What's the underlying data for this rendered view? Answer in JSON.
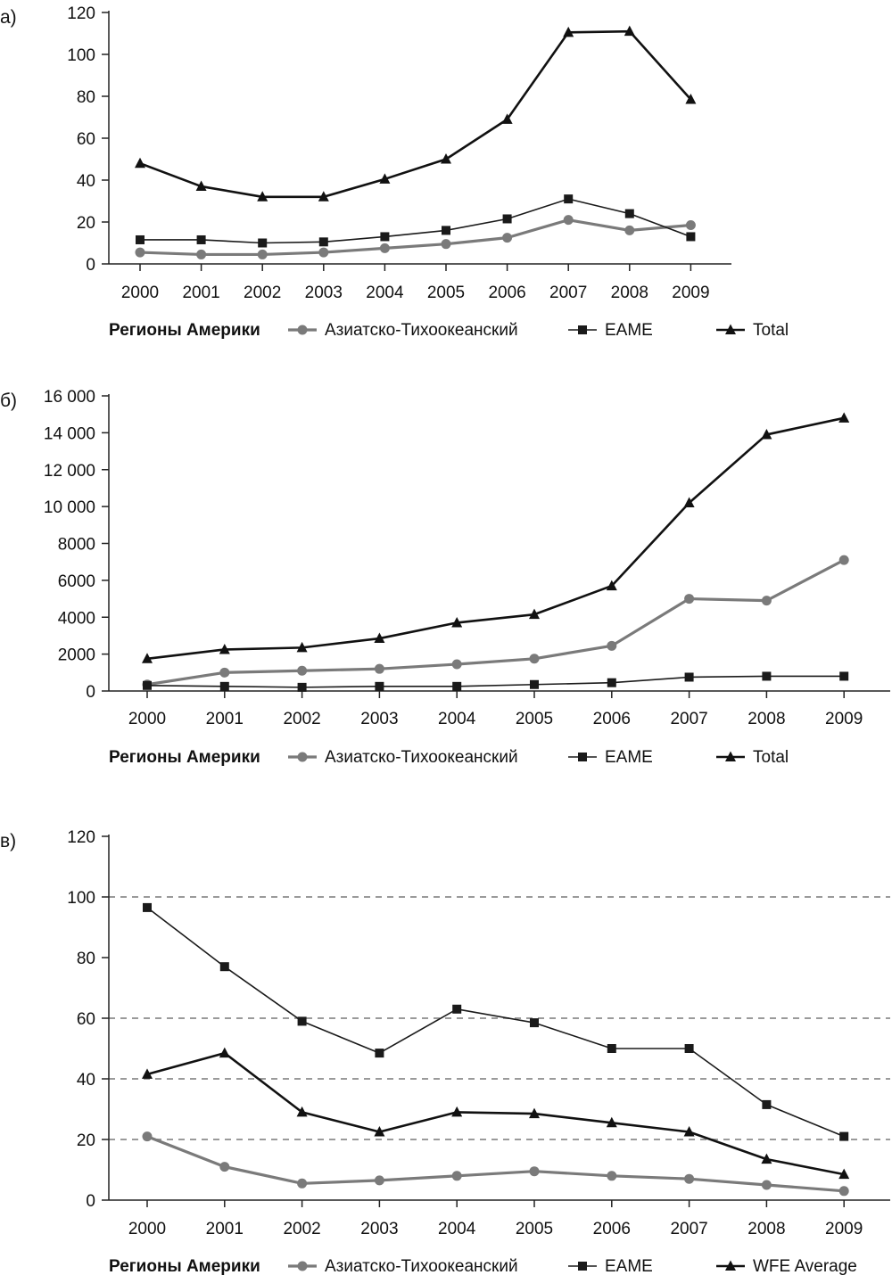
{
  "colors": {
    "axis": "#222222",
    "grid_dashed": "#9a9a9a",
    "asia_series": "#7a7a7a",
    "eame_series": "#1a1a1a",
    "total_series": "#111111"
  },
  "chart_data": [
    {
      "type": "line",
      "panel_label": "а)",
      "categories": [
        "2000",
        "2001",
        "2002",
        "2003",
        "2004",
        "2005",
        "2006",
        "2007",
        "2008",
        "2009"
      ],
      "ylim": [
        0,
        120
      ],
      "yticks": [
        0,
        20,
        40,
        60,
        80,
        100,
        120
      ],
      "ytick_labels": [
        "0",
        "20",
        "40",
        "60",
        "80",
        "100",
        "120"
      ],
      "grid": false,
      "legend": {
        "position": "bottom",
        "title": "Регионы Америки"
      },
      "series": [
        {
          "name": "Азиатско-Тихоокеанский",
          "marker": "circle",
          "color": "#7a7a7a",
          "values": [
            5.5,
            4.5,
            4.5,
            5.5,
            7.5,
            9.5,
            12.5,
            21,
            16,
            18.5
          ]
        },
        {
          "name": "EAME",
          "marker": "square",
          "color": "#1a1a1a",
          "values": [
            11.5,
            11.5,
            10,
            10.5,
            13,
            16,
            21.5,
            31,
            24,
            13
          ]
        },
        {
          "name": "Total",
          "marker": "triangle",
          "color": "#111111",
          "values": [
            48,
            37,
            32,
            32,
            40.5,
            50,
            69,
            110.5,
            111,
            78.5
          ]
        }
      ]
    },
    {
      "type": "line",
      "panel_label": "б)",
      "categories": [
        "2000",
        "2001",
        "2002",
        "2003",
        "2004",
        "2005",
        "2006",
        "2007",
        "2008",
        "2009"
      ],
      "ylim": [
        0,
        16000
      ],
      "yticks": [
        0,
        2000,
        4000,
        6000,
        8000,
        10000,
        12000,
        14000,
        16000
      ],
      "ytick_labels": [
        "0",
        "2000",
        "4000",
        "6000",
        "8000",
        "10 000",
        "12 000",
        "14 000",
        "16 000"
      ],
      "grid": false,
      "legend": {
        "position": "bottom",
        "title": "Регионы Америки"
      },
      "series": [
        {
          "name": "Азиатско-Тихоокеанский",
          "marker": "circle",
          "color": "#7a7a7a",
          "values": [
            350,
            1000,
            1100,
            1200,
            1450,
            1750,
            2450,
            5000,
            4900,
            7100
          ]
        },
        {
          "name": "EAME",
          "marker": "square",
          "color": "#1a1a1a",
          "values": [
            300,
            250,
            200,
            250,
            250,
            350,
            450,
            750,
            800,
            800
          ]
        },
        {
          "name": "Total",
          "marker": "triangle",
          "color": "#111111",
          "values": [
            1750,
            2250,
            2350,
            2850,
            3700,
            4150,
            5700,
            10200,
            13900,
            14800
          ]
        }
      ]
    },
    {
      "type": "line",
      "panel_label": "в)",
      "categories": [
        "2000",
        "2001",
        "2002",
        "2003",
        "2004",
        "2005",
        "2006",
        "2007",
        "2008",
        "2009"
      ],
      "ylim": [
        0,
        120
      ],
      "yticks": [
        0,
        20,
        40,
        60,
        80,
        100,
        120
      ],
      "ytick_labels": [
        "0",
        "20",
        "40",
        "60",
        "80",
        "100",
        "120"
      ],
      "grid": false,
      "dashed_reference_lines": [
        20,
        40,
        60,
        100
      ],
      "legend": {
        "position": "bottom",
        "title": "Регионы Америки"
      },
      "series": [
        {
          "name": "Азиатско-Тихоокеанский",
          "marker": "circle",
          "color": "#7a7a7a",
          "values": [
            21,
            11,
            5.5,
            6.5,
            8,
            9.5,
            8,
            7,
            5,
            3
          ]
        },
        {
          "name": "EAME",
          "marker": "square",
          "color": "#1a1a1a",
          "values": [
            96.5,
            77,
            59,
            48.5,
            63,
            58.5,
            50,
            50,
            31.5,
            21
          ]
        },
        {
          "name": "WFE Average",
          "marker": "triangle",
          "color": "#111111",
          "values": [
            41.5,
            48.5,
            29,
            22.5,
            29,
            28.5,
            25.5,
            22.5,
            13.5,
            8.5
          ]
        }
      ]
    }
  ]
}
